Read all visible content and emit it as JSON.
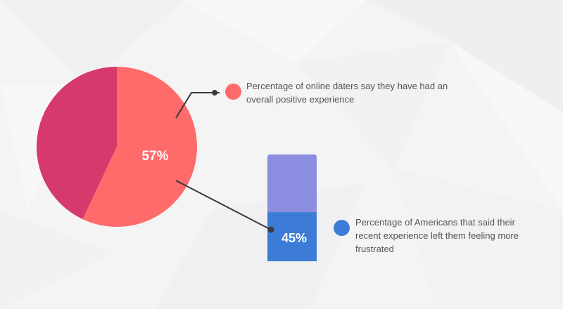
{
  "chart_data": [
    {
      "type": "pie",
      "slices": [
        {
          "label": "57%",
          "value": 57,
          "color": "#ff6b6b"
        },
        {
          "value": 43,
          "color": "#d63a6c"
        }
      ],
      "annotation": "Percentage of online daters say they have had an overall positive experience",
      "legend_color": "#ff6b6b"
    },
    {
      "type": "bar",
      "orientation": "vertical-stacked-percent",
      "value": 45,
      "label": "45%",
      "fill_color": "#3d7cd6",
      "track_color": "#8a8de0",
      "annotation": "Percentage of Americans that said their recent experience left them feeling more frustrated",
      "legend_color": "#3d7cd6"
    }
  ]
}
